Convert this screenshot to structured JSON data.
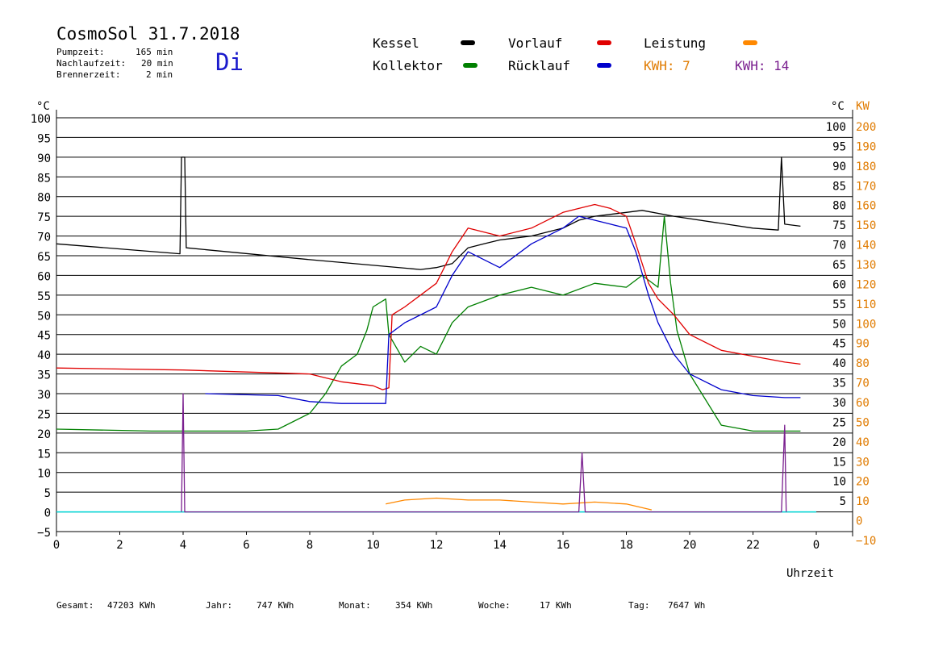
{
  "header": {
    "title": "CosmoSol 31.7.2018",
    "day": "Di",
    "stats": [
      {
        "label": "Pumpzeit:",
        "value": "165 min"
      },
      {
        "label": "Nachlaufzeit:",
        "value": "20 min"
      },
      {
        "label": "Brennerzeit:",
        "value": "2 min"
      }
    ]
  },
  "legend": {
    "items": [
      {
        "name": "Kessel",
        "color": "#000000"
      },
      {
        "name": "Kollektor",
        "color": "#008000"
      },
      {
        "name": "Vorlauf",
        "color": "#e00000"
      },
      {
        "name": "Rücklauf",
        "color": "#0000cc"
      },
      {
        "name": "Leistung",
        "color": "#ff8800"
      }
    ],
    "kwh1": "KWH: 7",
    "kwh1_color": "#e07b00",
    "kwh2": "KWH: 14",
    "kwh2_color": "#7a1f8f"
  },
  "footer": {
    "items": [
      {
        "label": "Gesamt:",
        "value": "47203 KWh"
      },
      {
        "label": "Jahr:",
        "value": "747 KWh"
      },
      {
        "label": "Monat:",
        "value": "354 KWh"
      },
      {
        "label": "Woche:",
        "value": "17 KWh"
      },
      {
        "label": "Tag:",
        "value": "7647 Wh"
      }
    ]
  },
  "chart_data": {
    "type": "line",
    "xlabel": "Uhrzeit",
    "ylabel_left": "°C",
    "ylabel_right_temp": "°C",
    "ylabel_right_power": "KW",
    "xlim": [
      0,
      24
    ],
    "ylim": [
      -5,
      100
    ],
    "y2lim": [
      -10,
      200
    ],
    "x_ticks": [
      "0",
      "2",
      "4",
      "6",
      "8",
      "10",
      "12",
      "14",
      "16",
      "18",
      "20",
      "22",
      "0"
    ],
    "y_ticks_left": [
      "100",
      "95",
      "90",
      "85",
      "80",
      "75",
      "70",
      "65",
      "60",
      "55",
      "50",
      "45",
      "40",
      "35",
      "30",
      "25",
      "20",
      "15",
      "10",
      "5",
      "0",
      "−5"
    ],
    "y_ticks_right_temp": [
      "100",
      "95",
      "90",
      "85",
      "80",
      "75",
      "70",
      "65",
      "60",
      "55",
      "50",
      "45",
      "40",
      "35",
      "30",
      "25",
      "20",
      "15",
      "10",
      "5"
    ],
    "y_ticks_right_power": [
      "200",
      "190",
      "180",
      "170",
      "160",
      "150",
      "140",
      "130",
      "120",
      "110",
      "100",
      "90",
      "80",
      "70",
      "60",
      "50",
      "40",
      "30",
      "20",
      "10",
      "0",
      "−10"
    ],
    "grid": true,
    "series": [
      {
        "name": "Kessel",
        "color": "#000000",
        "x": [
          0,
          3.9,
          3.95,
          4.05,
          4.1,
          8,
          11.5,
          12,
          12.5,
          13,
          13.5,
          14,
          15,
          16,
          16.5,
          17,
          18,
          18.5,
          19.5,
          22,
          22.8,
          22.9,
          23,
          23.5
        ],
        "y": [
          68,
          65.5,
          90,
          90,
          67,
          64,
          61.5,
          62,
          63,
          67,
          68,
          69,
          70,
          72,
          74,
          75,
          76,
          76.5,
          75,
          72,
          71.5,
          90,
          73,
          72.5
        ]
      },
      {
        "name": "Kollektor",
        "color": "#008000",
        "x": [
          0,
          3,
          6,
          7,
          8,
          8.5,
          9,
          9.5,
          9.8,
          10,
          10.4,
          10.5,
          11,
          11.5,
          12,
          12.5,
          13,
          14,
          15,
          16,
          17,
          18,
          18.5,
          19,
          19.2,
          19.4,
          19.6,
          20,
          21,
          22,
          23,
          23.5
        ],
        "y": [
          21,
          20.5,
          20.5,
          21,
          25,
          30,
          37,
          40,
          46,
          52,
          54,
          45,
          38,
          42,
          40,
          48,
          52,
          55,
          57,
          55,
          58,
          57,
          60,
          57,
          75,
          58,
          46,
          35,
          22,
          20.5,
          20.5,
          20.5
        ]
      },
      {
        "name": "Vorlauf",
        "color": "#e00000",
        "x": [
          0,
          4,
          8,
          9,
          10,
          10.3,
          10.5,
          10.6,
          11,
          12,
          12.5,
          13,
          14,
          15,
          16,
          16.5,
          17,
          17.5,
          18,
          18.3,
          18.7,
          19,
          19.5,
          20,
          21,
          22,
          23,
          23.5
        ],
        "y": [
          36.5,
          36,
          35,
          33,
          32,
          31,
          31.5,
          50,
          52,
          58,
          66,
          72,
          70,
          72,
          76,
          77,
          78,
          77,
          75,
          68,
          58,
          54,
          50,
          45,
          41,
          39.5,
          38,
          37.5
        ]
      },
      {
        "name": "Rücklauf",
        "color": "#0000cc",
        "x": [
          4.7,
          7,
          8,
          9,
          10,
          10.4,
          10.5,
          11,
          12,
          12.5,
          13,
          14,
          15,
          16,
          16.5,
          17,
          17.5,
          18,
          18.3,
          18.7,
          19,
          19.5,
          20,
          21,
          22,
          23,
          23.5
        ],
        "y": [
          30,
          29.5,
          28,
          27.5,
          27.5,
          27.5,
          45,
          48,
          52,
          60,
          66,
          62,
          68,
          72,
          75,
          74,
          73,
          72,
          66,
          55,
          48,
          40,
          35,
          31,
          29.5,
          29,
          29
        ]
      },
      {
        "name": "Leistung",
        "color": "#ff8800",
        "x": [
          10.4,
          11,
          12,
          13,
          14,
          15,
          16,
          17,
          18,
          18.8
        ],
        "y": [
          2,
          3,
          3.5,
          3,
          3,
          2.5,
          2,
          2.5,
          2,
          0.5
        ]
      },
      {
        "name": "KWH: 14",
        "color": "#7a1f8f",
        "x": [
          3.95,
          4.0,
          4.05,
          16.5,
          16.6,
          16.7,
          22.9,
          23.0,
          23.05
        ],
        "y": [
          0,
          30,
          0,
          0,
          15,
          0,
          0,
          22,
          0
        ]
      }
    ]
  }
}
